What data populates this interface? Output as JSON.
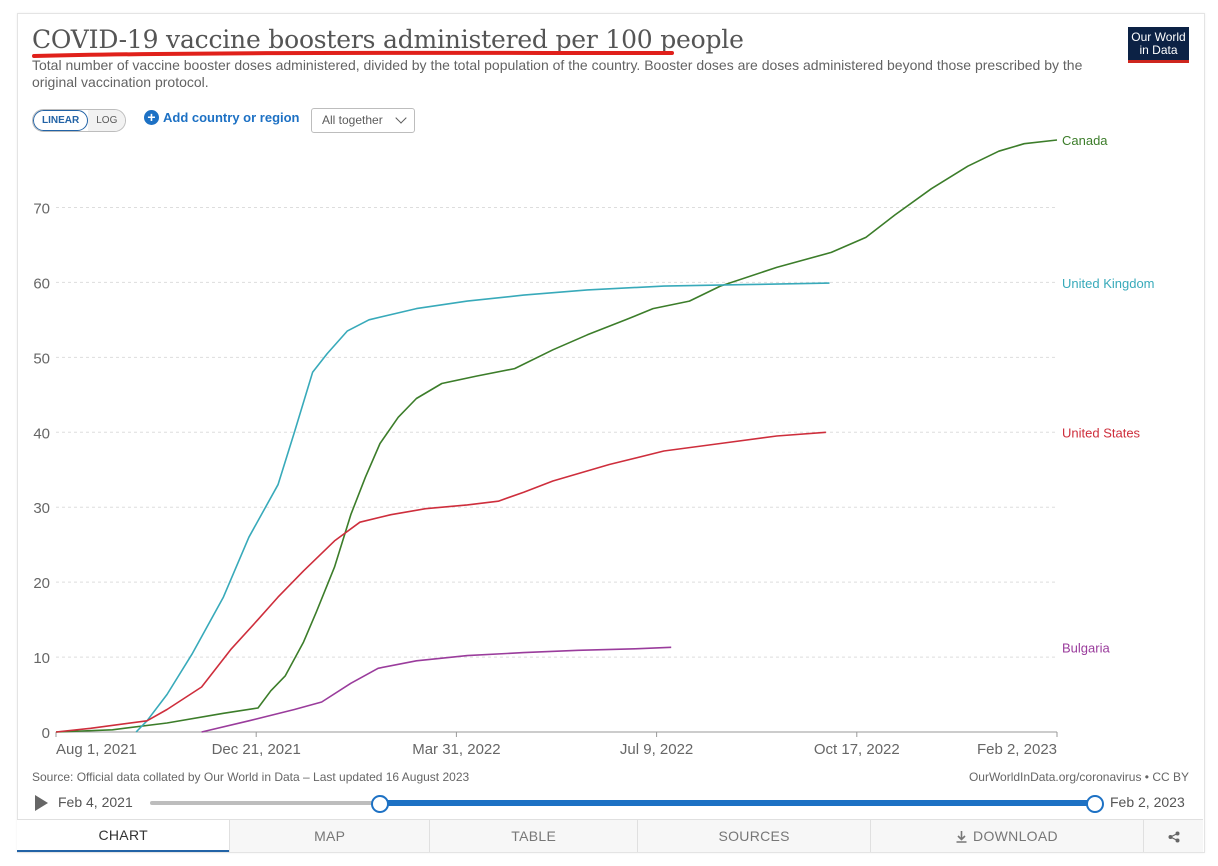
{
  "header": {
    "title": "COVID-19 vaccine boosters administered per 100 people",
    "subtitle": "Total number of vaccine booster doses administered, divided by the total population of the country. Booster doses are doses administered beyond those prescribed by the original vaccination protocol.",
    "logo_line1": "Our World",
    "logo_line2": "in Data",
    "title_underline_color": "#e0201b"
  },
  "controls": {
    "linear_label": "LINEAR",
    "log_label": "LOG",
    "add_country_label": "Add country or region",
    "plus_symbol": "+",
    "mode_select_value": "All together"
  },
  "chart_data": {
    "type": "line",
    "title": "COVID-19 vaccine boosters administered per 100 people",
    "xlabel": "",
    "ylabel": "",
    "x_ticks": [
      "Aug 1, 2021",
      "Dec 21, 2021",
      "Mar 31, 2022",
      "Jul 9, 2022",
      "Oct 17, 2022",
      "Feb 2, 2023"
    ],
    "y_ticks": [
      0,
      10,
      20,
      30,
      40,
      50,
      60,
      70
    ],
    "xlim": [
      "2021-08-01",
      "2023-02-02"
    ],
    "ylim": [
      0,
      79
    ],
    "grid": true,
    "legend": "right, inline labels at line ends",
    "series": [
      {
        "name": "Canada",
        "color": "#3c7d2a",
        "points": [
          [
            "2021-08-01",
            0
          ],
          [
            "2021-09-01",
            0.3
          ],
          [
            "2021-10-01",
            1.2
          ],
          [
            "2021-11-01",
            2.5
          ],
          [
            "2021-11-20",
            3.2
          ],
          [
            "2021-11-27",
            5.5
          ],
          [
            "2021-12-05",
            7.5
          ],
          [
            "2021-12-15",
            12
          ],
          [
            "2021-12-22",
            16
          ],
          [
            "2022-01-01",
            22
          ],
          [
            "2022-01-10",
            29
          ],
          [
            "2022-01-18",
            34
          ],
          [
            "2022-01-26",
            38.5
          ],
          [
            "2022-02-05",
            42
          ],
          [
            "2022-02-15",
            44.5
          ],
          [
            "2022-03-01",
            46.5
          ],
          [
            "2022-03-20",
            47.5
          ],
          [
            "2022-04-10",
            48.5
          ],
          [
            "2022-05-01",
            51
          ],
          [
            "2022-05-20",
            53
          ],
          [
            "2022-06-10",
            55
          ],
          [
            "2022-06-25",
            56.5
          ],
          [
            "2022-07-15",
            57.5
          ],
          [
            "2022-08-01",
            59.5
          ],
          [
            "2022-09-01",
            62
          ],
          [
            "2022-10-01",
            64
          ],
          [
            "2022-10-20",
            66
          ],
          [
            "2022-11-05",
            69
          ],
          [
            "2022-11-25",
            72.5
          ],
          [
            "2022-12-15",
            75.5
          ],
          [
            "2023-01-01",
            77.5
          ],
          [
            "2023-01-15",
            78.5
          ],
          [
            "2023-02-02",
            79
          ]
        ]
      },
      {
        "name": "United Kingdom",
        "color": "#38aaba",
        "points": [
          [
            "2021-09-14",
            0
          ],
          [
            "2021-09-20",
            1.5
          ],
          [
            "2021-10-01",
            5
          ],
          [
            "2021-10-15",
            10.5
          ],
          [
            "2021-11-01",
            18
          ],
          [
            "2021-11-15",
            26
          ],
          [
            "2021-12-01",
            33
          ],
          [
            "2021-12-10",
            40
          ],
          [
            "2021-12-20",
            48
          ],
          [
            "2021-12-28",
            50.5
          ],
          [
            "2022-01-08",
            53.5
          ],
          [
            "2022-01-20",
            55
          ],
          [
            "2022-02-15",
            56.5
          ],
          [
            "2022-03-15",
            57.5
          ],
          [
            "2022-04-15",
            58.3
          ],
          [
            "2022-05-20",
            59
          ],
          [
            "2022-07-01",
            59.5
          ],
          [
            "2022-08-15",
            59.7
          ],
          [
            "2022-09-30",
            59.9
          ]
        ]
      },
      {
        "name": "United States",
        "color": "#ce2e3c",
        "points": [
          [
            "2021-08-01",
            0
          ],
          [
            "2021-08-20",
            0.5
          ],
          [
            "2021-09-20",
            1.5
          ],
          [
            "2021-10-01",
            3
          ],
          [
            "2021-10-20",
            6
          ],
          [
            "2021-11-05",
            11
          ],
          [
            "2021-11-20",
            15
          ],
          [
            "2021-12-01",
            18
          ],
          [
            "2021-12-15",
            21.5
          ],
          [
            "2022-01-01",
            25.5
          ],
          [
            "2022-01-15",
            28
          ],
          [
            "2022-02-01",
            29
          ],
          [
            "2022-02-20",
            29.8
          ],
          [
            "2022-03-15",
            30.3
          ],
          [
            "2022-04-01",
            30.8
          ],
          [
            "2022-04-15",
            32
          ],
          [
            "2022-05-01",
            33.5
          ],
          [
            "2022-06-01",
            35.7
          ],
          [
            "2022-07-01",
            37.5
          ],
          [
            "2022-08-01",
            38.5
          ],
          [
            "2022-09-01",
            39.5
          ],
          [
            "2022-09-28",
            40
          ]
        ]
      },
      {
        "name": "Bulgaria",
        "color": "#9a3c9c",
        "points": [
          [
            "2021-10-20",
            0
          ],
          [
            "2021-11-15",
            1.5
          ],
          [
            "2021-12-10",
            3
          ],
          [
            "2021-12-25",
            4
          ],
          [
            "2022-01-10",
            6.5
          ],
          [
            "2022-01-25",
            8.5
          ],
          [
            "2022-02-15",
            9.5
          ],
          [
            "2022-03-15",
            10.2
          ],
          [
            "2022-04-15",
            10.6
          ],
          [
            "2022-05-15",
            10.9
          ],
          [
            "2022-06-15",
            11.1
          ],
          [
            "2022-07-05",
            11.3
          ]
        ]
      }
    ]
  },
  "footer": {
    "source": "Source: Official data collated by Our World in Data – Last updated 16 August 2023",
    "license": "OurWorldInData.org/coronavirus • CC BY",
    "timeline_start": "Feb 4, 2021",
    "timeline_end": "Feb 2, 2023"
  },
  "tabs": {
    "chart": "CHART",
    "map": "MAP",
    "table": "TABLE",
    "sources": "SOURCES",
    "download": "DOWNLOAD"
  }
}
